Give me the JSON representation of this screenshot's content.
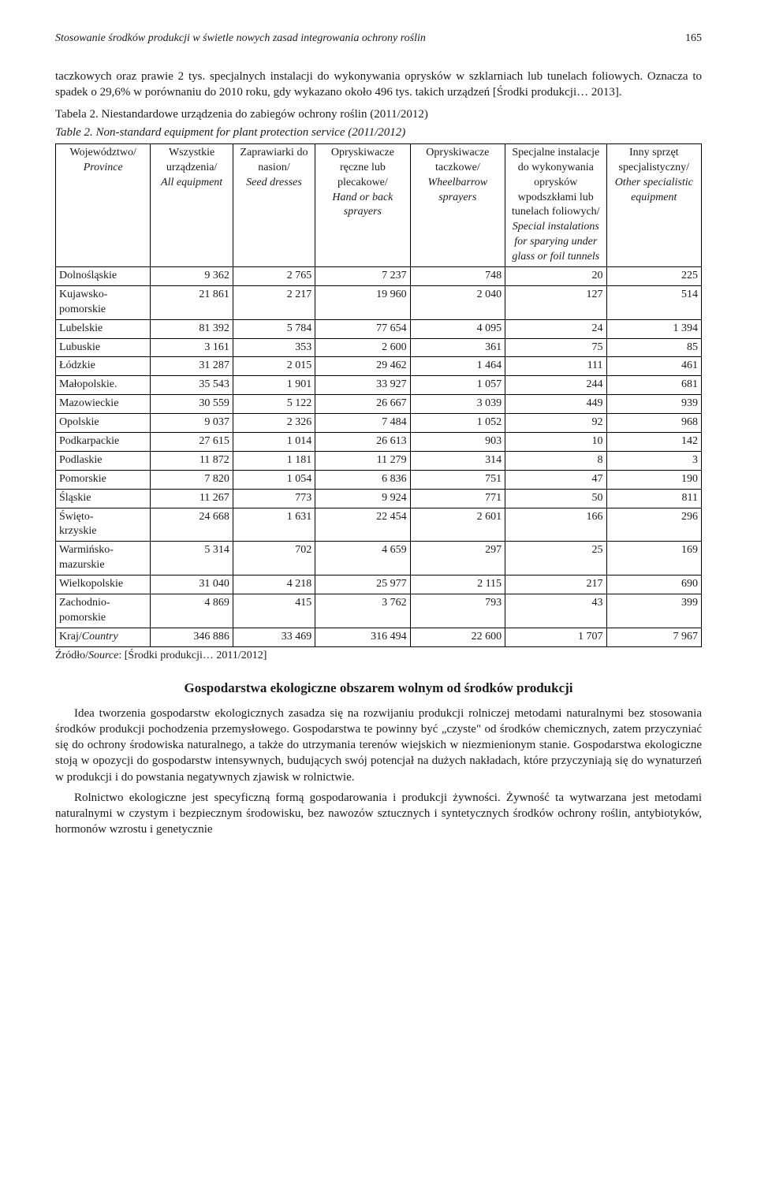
{
  "page": {
    "running_title": "Stosowanie środków produkcji w świetle nowych zasad integrowania ochrony roślin",
    "number": "165"
  },
  "intro_para": "taczkowych oraz prawie 2 tys. specjalnych instalacji do wykonywania oprysków w szklarniach lub tunelach foliowych. Oznacza to spadek o 29,6% w porównaniu do 2010 roku, gdy wykazano około 496 tys. takich urządzeń [Środki produkcji… 2013].",
  "table": {
    "caption_pl": "Tabela 2. Niestandardowe urządzenia do zabiegów ochrony roślin (2011/2012)",
    "caption_en": "Table 2. Non-standard equipment for plant protection service (2011/2012)",
    "col_widths": [
      "15%",
      "13%",
      "13%",
      "15%",
      "15%",
      "16%",
      "15%"
    ],
    "headers": [
      {
        "pl": "Województwo/",
        "en": "Province"
      },
      {
        "pl": "Wszystkie urządzenia/",
        "en": "All equipment"
      },
      {
        "pl": "Zaprawiarki do nasion/",
        "en": "Seed dresses"
      },
      {
        "pl": "Opryskiwacze ręczne lub plecakowe/",
        "en": "Hand or back sprayers"
      },
      {
        "pl": "Opryskiwacze taczkowe/",
        "en": "Wheelbarrow sprayers"
      },
      {
        "pl": "Specjalne instalacje do wykonywania oprysków wpodszkłami lub tunelach foliowych/",
        "en": "Special instalations for sparying under glass or foil tunnels"
      },
      {
        "pl": "Inny sprzęt specjalistyczny/",
        "en": "Other specialistic equipment"
      }
    ],
    "rows": [
      {
        "label": "Dolnośląskie",
        "v": [
          "9 362",
          "2 765",
          "7 237",
          "748",
          "20",
          "225"
        ]
      },
      {
        "label": "Kujawsko-pomorskie",
        "v": [
          "21 861",
          "2 217",
          "19 960",
          "2 040",
          "127",
          "514"
        ]
      },
      {
        "label": "Lubelskie",
        "v": [
          "81 392",
          "5 784",
          "77 654",
          "4 095",
          "24",
          "1 394"
        ]
      },
      {
        "label": "Lubuskie",
        "v": [
          "3 161",
          "353",
          "2 600",
          "361",
          "75",
          "85"
        ]
      },
      {
        "label": "Łódzkie",
        "v": [
          "31 287",
          "2 015",
          "29 462",
          "1 464",
          "111",
          "461"
        ]
      },
      {
        "label": "Małopolskie.",
        "v": [
          "35 543",
          "1 901",
          "33 927",
          "1 057",
          "244",
          "681"
        ]
      },
      {
        "label": "Mazowieckie",
        "v": [
          "30 559",
          "5 122",
          "26 667",
          "3 039",
          "449",
          "939"
        ]
      },
      {
        "label": "Opolskie",
        "v": [
          "9 037",
          "2 326",
          "7 484",
          "1 052",
          "92",
          "968"
        ]
      },
      {
        "label": "Podkarpackie",
        "v": [
          "27 615",
          "1 014",
          "26 613",
          "903",
          "10",
          "142"
        ]
      },
      {
        "label": "Podlaskie",
        "v": [
          "11 872",
          "1 181",
          "11 279",
          "314",
          "8",
          "3"
        ]
      },
      {
        "label": "Pomorskie",
        "v": [
          "7 820",
          "1 054",
          "6 836",
          "751",
          "47",
          "190"
        ]
      },
      {
        "label": "Śląskie",
        "v": [
          "11 267",
          "773",
          "9 924",
          "771",
          "50",
          "811"
        ]
      },
      {
        "label": "Święto-krzyskie",
        "v": [
          "24 668",
          "1 631",
          "22 454",
          "2 601",
          "166",
          "296"
        ]
      },
      {
        "label": "Warmińsko-mazurskie",
        "v": [
          "5 314",
          "702",
          "4 659",
          "297",
          "25",
          "169"
        ]
      },
      {
        "label": "Wielkopolskie",
        "v": [
          "31 040",
          "4 218",
          "25 977",
          "2 115",
          "217",
          "690"
        ]
      },
      {
        "label": "Zachodnio-pomorskie",
        "v": [
          "4 869",
          "415",
          "3 762",
          "793",
          "43",
          "399"
        ]
      }
    ],
    "country_row": {
      "label_pl": "Kraj/",
      "label_en": "Country",
      "v": [
        "346 886",
        "33 469",
        "316 494",
        "22 600",
        "1 707",
        "7 967"
      ]
    },
    "source_prefix": "Źródło/",
    "source_en": "Source",
    "source_text": ": [Środki produkcji… 2011/2012]"
  },
  "section_heading": "Gospodarstwa ekologiczne obszarem wolnym od środków produkcji",
  "para2": "Idea tworzenia gospodarstw ekologicznych zasadza się na rozwijaniu produkcji rolniczej metodami naturalnymi bez stosowania środków produkcji pochodzenia przemysłowego. Gospodarstwa te powinny być „czyste\" od środków chemicznych, zatem przyczyniać się do ochrony środowiska naturalnego, a także do utrzymania terenów wiejskich w niezmienionym stanie. Gospodarstwa ekologiczne stoją w opozycji do gospodarstw intensywnych, budujących swój potencjał na dużych nakładach, które przyczyniają się do wynaturzeń w produkcji i do powstania negatywnych zjawisk w rolnictwie.",
  "para3": "Rolnictwo ekologiczne jest specyficzną formą gospodarowania i produkcji żywności. Żywność ta wytwarzana jest metodami naturalnymi w czystym i bezpiecznym środowisku, bez nawozów sztucznych i syntetycznych środków ochrony roślin, antybiotyków, hormonów wzrostu i genetycznie"
}
